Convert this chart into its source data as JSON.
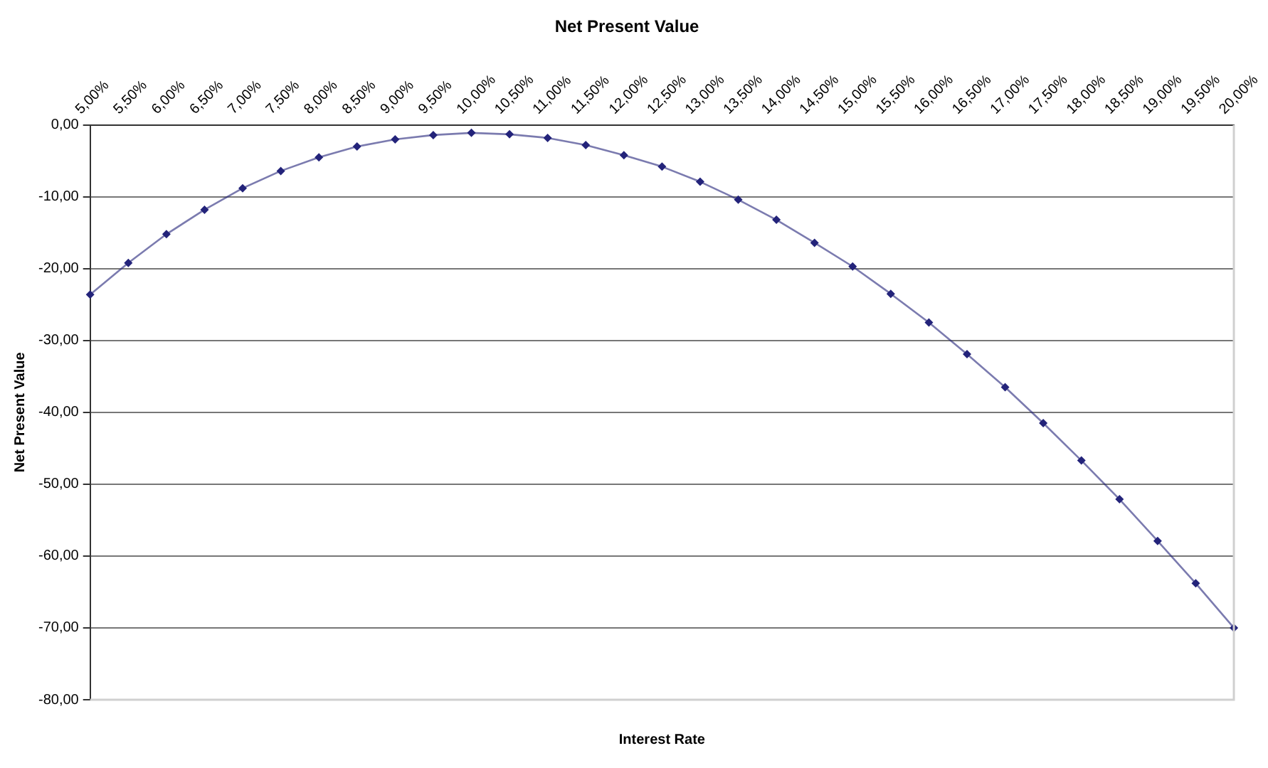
{
  "chart_data": {
    "type": "line",
    "title": "Net Present Value",
    "xlabel": "Interest Rate",
    "ylabel": "Net Present Value",
    "categories": [
      "5,00%",
      "5,50%",
      "6,00%",
      "6,50%",
      "7,00%",
      "7,50%",
      "8,00%",
      "8,50%",
      "9,00%",
      "9,50%",
      "10,00%",
      "10,50%",
      "11,00%",
      "11,50%",
      "12,00%",
      "12,50%",
      "13,00%",
      "13,50%",
      "14,00%",
      "14,50%",
      "15,00%",
      "15,50%",
      "16,00%",
      "16,50%",
      "17,00%",
      "17,50%",
      "18,00%",
      "18,50%",
      "19,00%",
      "19,50%",
      "20,00%"
    ],
    "series": [
      {
        "color": "#23237a",
        "values": [
          -23.6,
          -19.2,
          -15.2,
          -11.8,
          -8.8,
          -6.4,
          -4.5,
          -3.0,
          -2.0,
          -1.4,
          -1.1,
          -1.3,
          -1.8,
          -2.8,
          -4.2,
          -5.8,
          -7.9,
          -10.4,
          -13.2,
          -16.4,
          -19.7,
          -23.5,
          -27.5,
          -31.9,
          -36.5,
          -41.5,
          -46.7,
          -52.1,
          -57.9,
          -63.8,
          -70.0
        ]
      }
    ],
    "ylim": [
      -80,
      0
    ],
    "yticks": [
      {
        "value": 0,
        "label": "0,00"
      },
      {
        "value": -10,
        "label": "-10,00"
      },
      {
        "value": -20,
        "label": "-20,00"
      },
      {
        "value": -30,
        "label": "-30,00"
      },
      {
        "value": -40,
        "label": "-40,00"
      },
      {
        "value": -50,
        "label": "-50,00"
      },
      {
        "value": -60,
        "label": "-60,00"
      },
      {
        "value": -70,
        "label": "-70,00"
      },
      {
        "value": -80,
        "label": "-80,00"
      }
    ],
    "grid": "y",
    "legend": false,
    "marker": "diamond",
    "line_style": "solid"
  }
}
